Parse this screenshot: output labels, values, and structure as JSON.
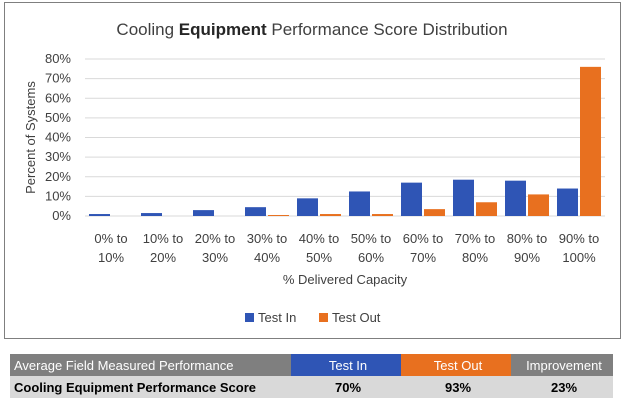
{
  "chart_data": {
    "type": "bar",
    "title_parts": [
      "Cooling ",
      "Equipment",
      " Performance Score Distribution"
    ],
    "xlabel": "% Delivered Capacity",
    "ylabel": "Percent of Systems",
    "ylim": [
      0,
      80
    ],
    "yticks": [
      "0%",
      "10%",
      "20%",
      "30%",
      "40%",
      "50%",
      "60%",
      "70%",
      "80%"
    ],
    "categories": [
      [
        "0% to",
        "10%"
      ],
      [
        "10% to",
        "20%"
      ],
      [
        "20% to",
        "30%"
      ],
      [
        "30% to",
        "40%"
      ],
      [
        "40% to",
        "50%"
      ],
      [
        "50% to",
        "60%"
      ],
      [
        "60% to",
        "70%"
      ],
      [
        "70% to",
        "80%"
      ],
      [
        "80% to",
        "90%"
      ],
      [
        "90% to",
        "100%"
      ]
    ],
    "series": [
      {
        "name": "Test In",
        "color": "#2f55b5",
        "values": [
          1,
          1.5,
          3,
          4.5,
          9,
          12.5,
          17,
          18.5,
          18,
          14
        ]
      },
      {
        "name": "Test Out",
        "color": "#e8701f",
        "values": [
          0,
          0,
          0,
          0.5,
          1,
          1,
          3.5,
          7,
          11,
          76
        ]
      }
    ],
    "grid": true,
    "legend_position": "bottom"
  },
  "table": {
    "header": {
      "label": "Average Field Measured Performance",
      "test_in": "Test In",
      "test_out": "Test Out",
      "improvement": "Improvement"
    },
    "row": {
      "label": "Cooling Equipment Performance Score",
      "test_in": "70%",
      "test_out": "93%",
      "improvement": "23%"
    }
  }
}
